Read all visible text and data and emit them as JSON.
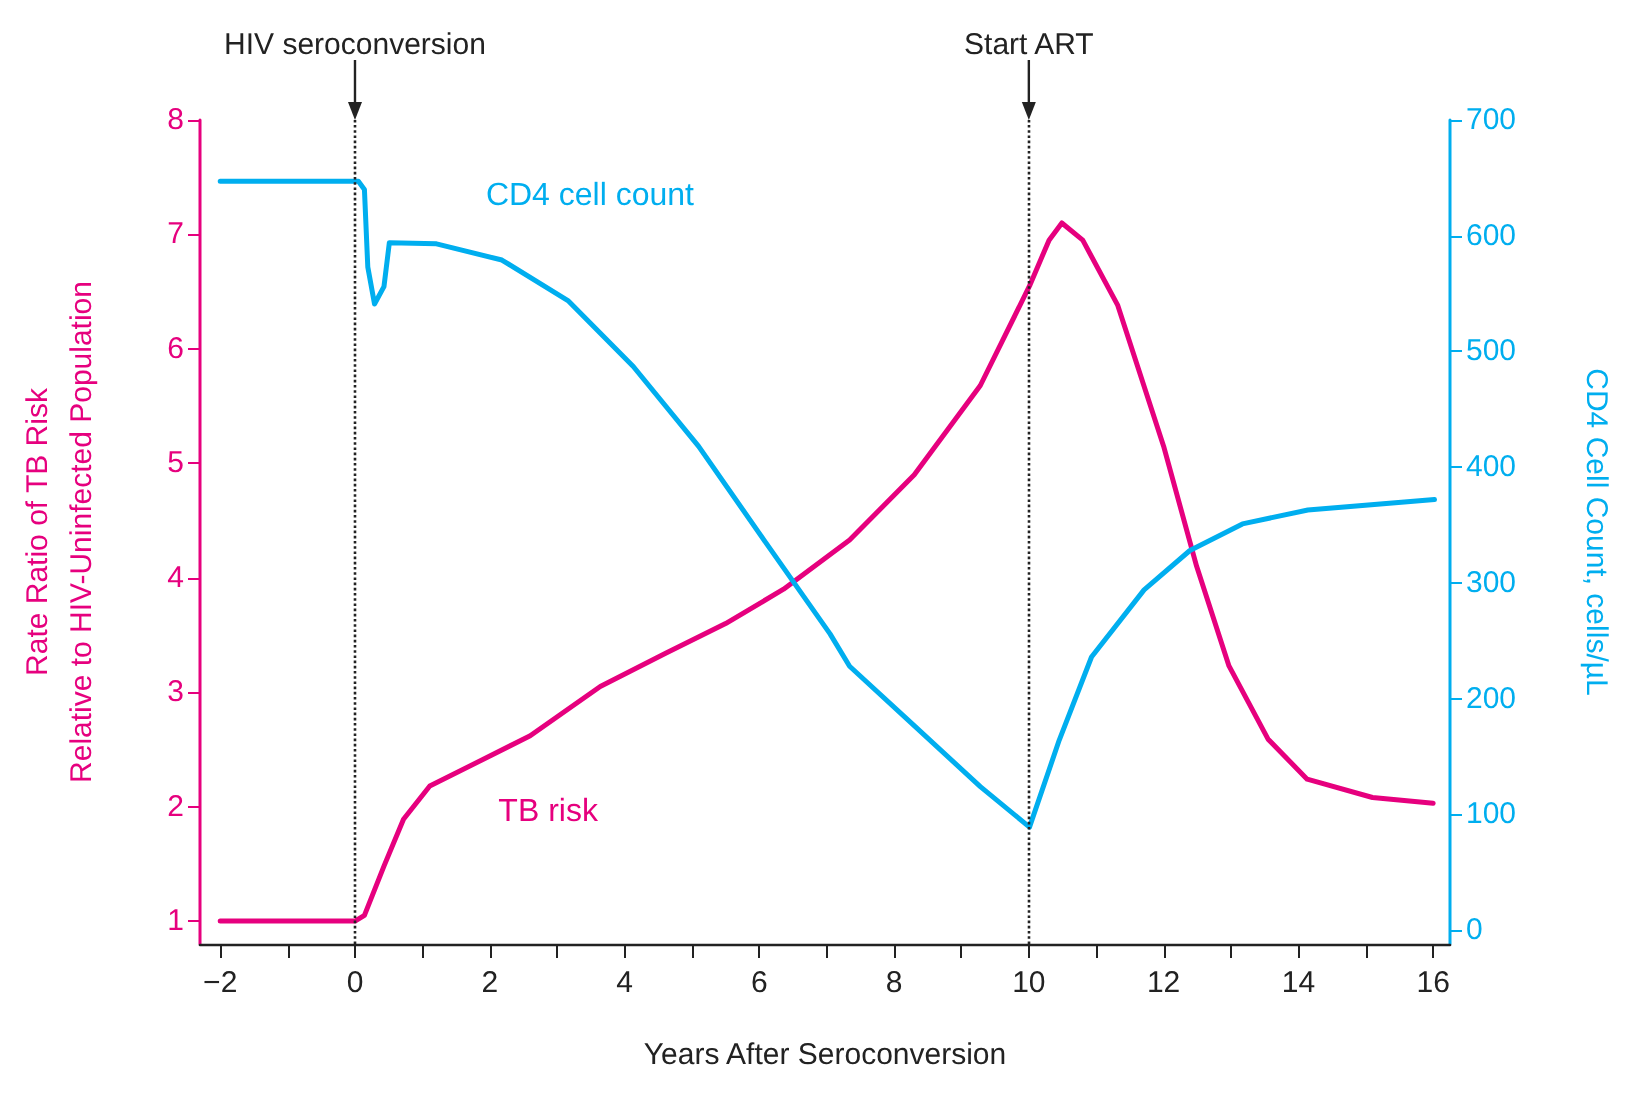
{
  "chart_data": {
    "type": "line",
    "xlabel": "Years After Seroconversion",
    "ylabel": "Rate Ratio of TB Risk\nRelative to HIV-Uninfected Population",
    "y2label": "CD4 Cell Count, cells/µL",
    "xlim": [
      -2.3,
      16.25
    ],
    "xticks": [
      {
        "value": -2,
        "label": "−2"
      },
      {
        "value": -1,
        "label": null
      },
      0,
      {
        "value": 1,
        "label": null
      },
      2,
      {
        "value": 3,
        "label": null
      },
      4,
      {
        "value": 5,
        "label": null
      },
      6,
      {
        "value": 7,
        "label": null
      },
      8,
      {
        "value": 9,
        "label": null
      },
      10,
      {
        "value": 11,
        "label": null
      },
      12,
      {
        "value": 13,
        "label": null
      },
      14,
      {
        "value": 15,
        "label": null
      },
      16
    ],
    "ylim": [
      0.8,
      8
    ],
    "yticks": [
      1,
      2,
      3,
      4,
      5,
      6,
      7,
      8
    ],
    "y2lim": [
      -12,
      700
    ],
    "y2ticks": [
      0,
      100,
      200,
      300,
      400,
      500,
      600,
      700
    ],
    "marker": "none",
    "series": [
      {
        "name": "TB risk",
        "color": "#e6007e",
        "x": [
          -2,
          0,
          0.14,
          0.43,
          0.72,
          1.11,
          1.89,
          2.6,
          3.64,
          4.61,
          5.5,
          6.36,
          7.34,
          8.3,
          9.28,
          10.01,
          10.3,
          10.49,
          10.8,
          11.32,
          12.0,
          12.49,
          12.97,
          13.55,
          14.13,
          15.1,
          16.0
        ],
        "values": [
          1,
          1,
          1.05,
          1.48,
          1.89,
          2.18,
          2.41,
          2.62,
          3.05,
          3.34,
          3.6,
          3.9,
          4.33,
          4.9,
          5.68,
          6.55,
          6.95,
          7.1,
          6.95,
          6.38,
          5.15,
          4.1,
          3.23,
          2.59,
          2.24,
          2.08,
          2.03
        ]
      },
      {
        "name": "CD4 cell count",
        "color": "#00aeef",
        "axis": "y2",
        "x": [
          -2,
          0.05,
          0.14,
          0.19,
          0.29,
          0.43,
          0.51,
          1.21,
          2.18,
          3.16,
          4.13,
          5.1,
          6.07,
          7.05,
          7.34,
          8.31,
          9.28,
          10.01,
          10.45,
          10.93,
          11.71,
          12.39,
          13.17,
          14.14,
          16.02
        ],
        "values": [
          647,
          647,
          640,
          573,
          541,
          556,
          594,
          593,
          579,
          544,
          487,
          418,
          337,
          256,
          228,
          176,
          124,
          89,
          164,
          236,
          294,
          328,
          351,
          363,
          372
        ]
      }
    ],
    "ref_lines": [
      {
        "axis": "x",
        "value": 0,
        "label": "HIV seroconversion",
        "line_style": "dotted"
      },
      {
        "axis": "x",
        "value": 10,
        "label": "Start ART",
        "line_style": "dotted"
      }
    ]
  }
}
